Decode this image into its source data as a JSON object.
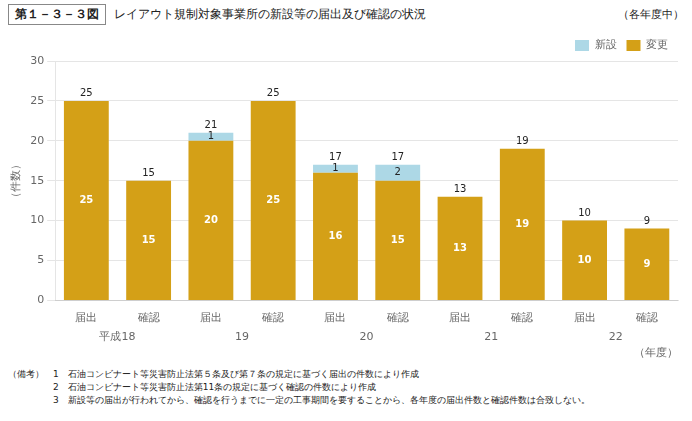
{
  "chart_data": {
    "type": "bar",
    "stacked": true,
    "title": "レイアウト規制対象事業所の新設等の届出及び確認の状況",
    "annotations": [
      "第１－３－３図",
      "（各年度中）",
      "（備考）　1　石油コンビナート等災害防止法第５条及び第７条の規定に基づく届出の件数により作成",
      "　　　　　2　石油コンビナート等災害防止法第11条の規定に基づく確認の件数により作成",
      "　　　　　3　新設等の届出が行われてから、確認を行うまでに一定の工事期間を要することから、各年度の届出件数と確認件数は合致しない。"
    ],
    "xlabel": "（年度）",
    "ylabel": "（件数）",
    "categories": [
      "届出",
      "確認",
      "届出",
      "確認",
      "届出",
      "確認",
      "届出",
      "確認",
      "届出",
      "確認"
    ],
    "groups": [
      "平成18",
      "19",
      "20",
      "21",
      "22"
    ],
    "series": [
      {
        "name": "変更",
        "color": "#d4a017",
        "values": [
          25,
          15,
          20,
          25,
          16,
          15,
          13,
          19,
          10,
          9
        ]
      },
      {
        "name": "新設",
        "color": "#add8e6",
        "values": [
          0,
          0,
          1,
          0,
          1,
          2,
          0,
          0,
          0,
          0
        ]
      }
    ],
    "totals": [
      25,
      15,
      21,
      25,
      17,
      17,
      13,
      19,
      10,
      9
    ],
    "data_labels": true,
    "ylim": [
      0,
      30
    ],
    "yticks": [
      0,
      5,
      10,
      15,
      20,
      25,
      30
    ],
    "grid": true,
    "legend": "upper right"
  }
}
